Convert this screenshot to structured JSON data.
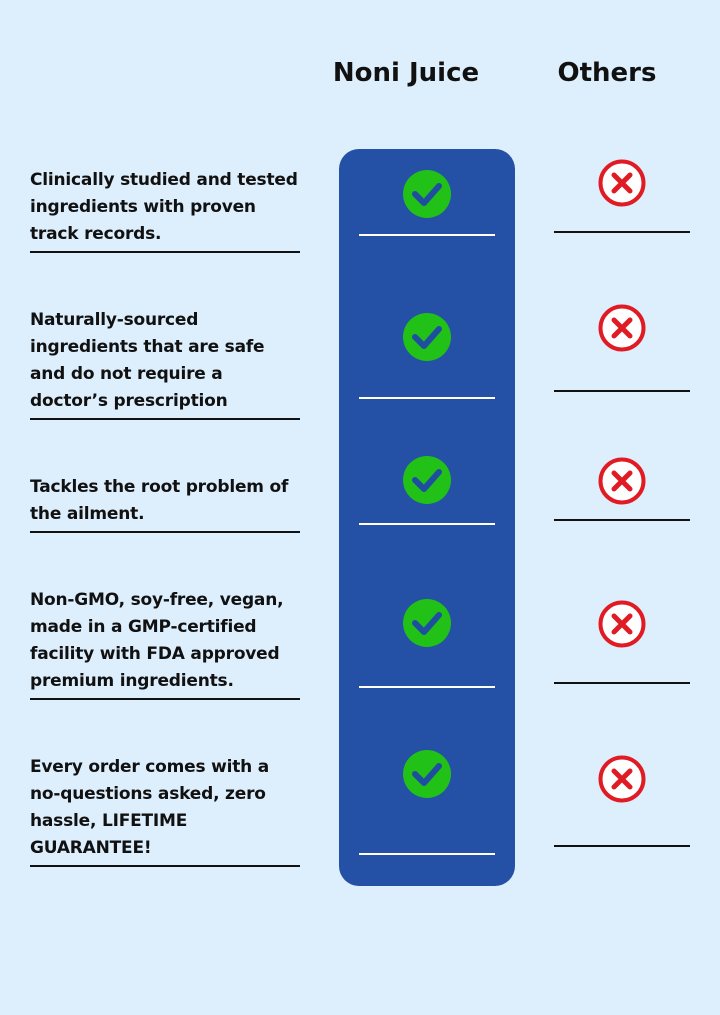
{
  "headers": {
    "noni": "Noni Juice",
    "others": "Others"
  },
  "colors": {
    "background": "#ddeefc",
    "noni_column": "#2450a5",
    "check_green": "#22c118",
    "cross_red": "#e01b24"
  },
  "icons": {
    "noni": "check-circle-icon",
    "others": "x-circle-icon"
  },
  "rows": [
    {
      "text": "Clinically studied and tested ingredients with proven track records."
    },
    {
      "text": "Naturally-sourced ingredients that are safe and do not require a doctor’s prescription"
    },
    {
      "text": "Tackles the root problem of the ailment."
    },
    {
      "text": "Non-GMO, soy-free, vegan, made in a GMP-certified facility with FDA approved premium ingredients."
    },
    {
      "text": "Every order comes with a no-questions asked, zero hassle, LIFETIME GUARANTEE!"
    }
  ]
}
